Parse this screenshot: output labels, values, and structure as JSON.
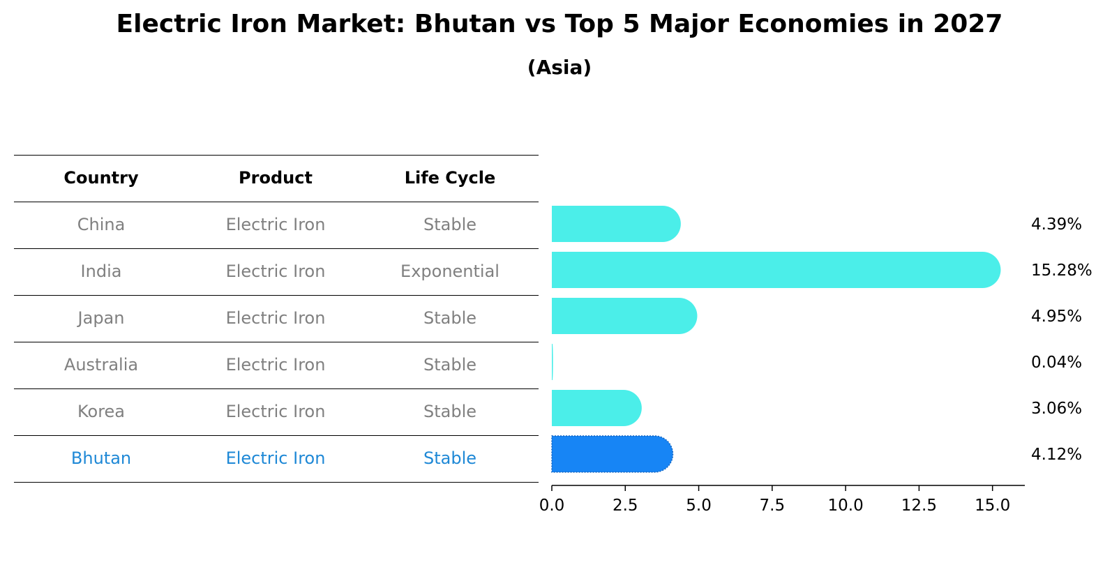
{
  "title": "Electric Iron Market: Bhutan vs Top 5 Major Economies in 2027",
  "subtitle": "(Asia)",
  "table": {
    "headers": [
      "Country",
      "Product",
      "Life Cycle"
    ],
    "rows": [
      [
        "China",
        "Electric Iron",
        "Stable"
      ],
      [
        "India",
        "Electric Iron",
        "Exponential"
      ],
      [
        "Japan",
        "Electric Iron",
        "Stable"
      ],
      [
        "Australia",
        "Electric Iron",
        "Stable"
      ],
      [
        "Korea",
        "Electric Iron",
        "Stable"
      ],
      [
        "Bhutan",
        "Electric Iron",
        "Stable"
      ]
    ],
    "highlight_row": 5
  },
  "colors": {
    "bar": "#4beee9",
    "highlight_bar": "#1785f5",
    "highlight_text": "#1e88d6",
    "muted_text": "#808080"
  },
  "chart_data": {
    "type": "bar",
    "orientation": "horizontal",
    "categories": [
      "China",
      "India",
      "Japan",
      "Australia",
      "Korea",
      "Bhutan"
    ],
    "values": [
      4.39,
      15.28,
      4.95,
      0.04,
      3.06,
      4.12
    ],
    "value_labels": [
      "4.39%",
      "15.28%",
      "4.95%",
      "0.04%",
      "3.06%",
      "4.12%"
    ],
    "highlight_index": 5,
    "xlim": [
      0,
      16.1
    ],
    "xticks": [
      0,
      2.5,
      5,
      7.5,
      10,
      12.5,
      15
    ],
    "xtick_labels": [
      "0.0",
      "2.5",
      "5.0",
      "7.5",
      "10.0",
      "12.5",
      "15.0"
    ],
    "xlabel": "",
    "ylabel": "",
    "grid": false
  }
}
